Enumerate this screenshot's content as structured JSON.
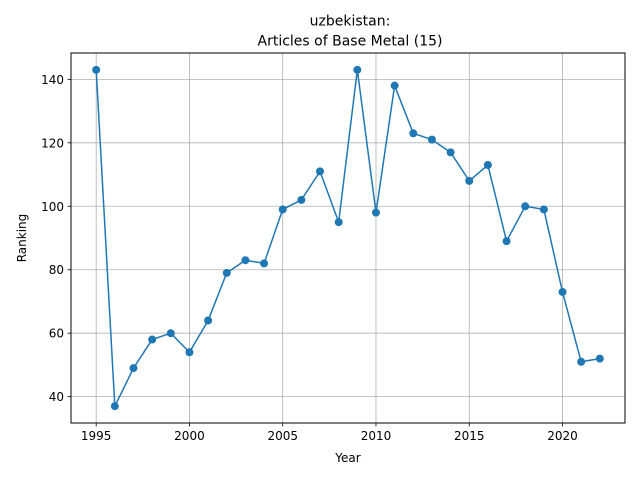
{
  "chart_data": {
    "type": "line",
    "title_line1": "uzbekistan:",
    "title_line2": "Articles of Base Metal (15)",
    "xlabel": "Year",
    "ylabel": "Ranking",
    "xlim": [
      1993.65,
      2023.35
    ],
    "ylim": [
      31.7,
      148.3
    ],
    "x_ticks": [
      1995,
      2000,
      2005,
      2010,
      2015,
      2020
    ],
    "y_ticks": [
      40,
      60,
      80,
      100,
      120,
      140
    ],
    "grid": true,
    "color": "#1f77b4",
    "series": [
      {
        "x": [
          1995,
          1996,
          1997,
          1998,
          1999,
          2000,
          2001,
          2002,
          2003,
          2004,
          2005,
          2006,
          2007,
          2008,
          2009,
          2010,
          2011,
          2012,
          2013,
          2014,
          2015,
          2016,
          2017,
          2018,
          2019,
          2020,
          2021,
          2022
        ],
        "y": [
          143,
          37,
          49,
          58,
          60,
          54,
          64,
          79,
          83,
          82,
          99,
          102,
          111,
          95,
          143,
          98,
          138,
          123,
          121,
          117,
          108,
          113,
          89,
          100,
          99,
          73,
          51,
          52
        ]
      }
    ]
  }
}
